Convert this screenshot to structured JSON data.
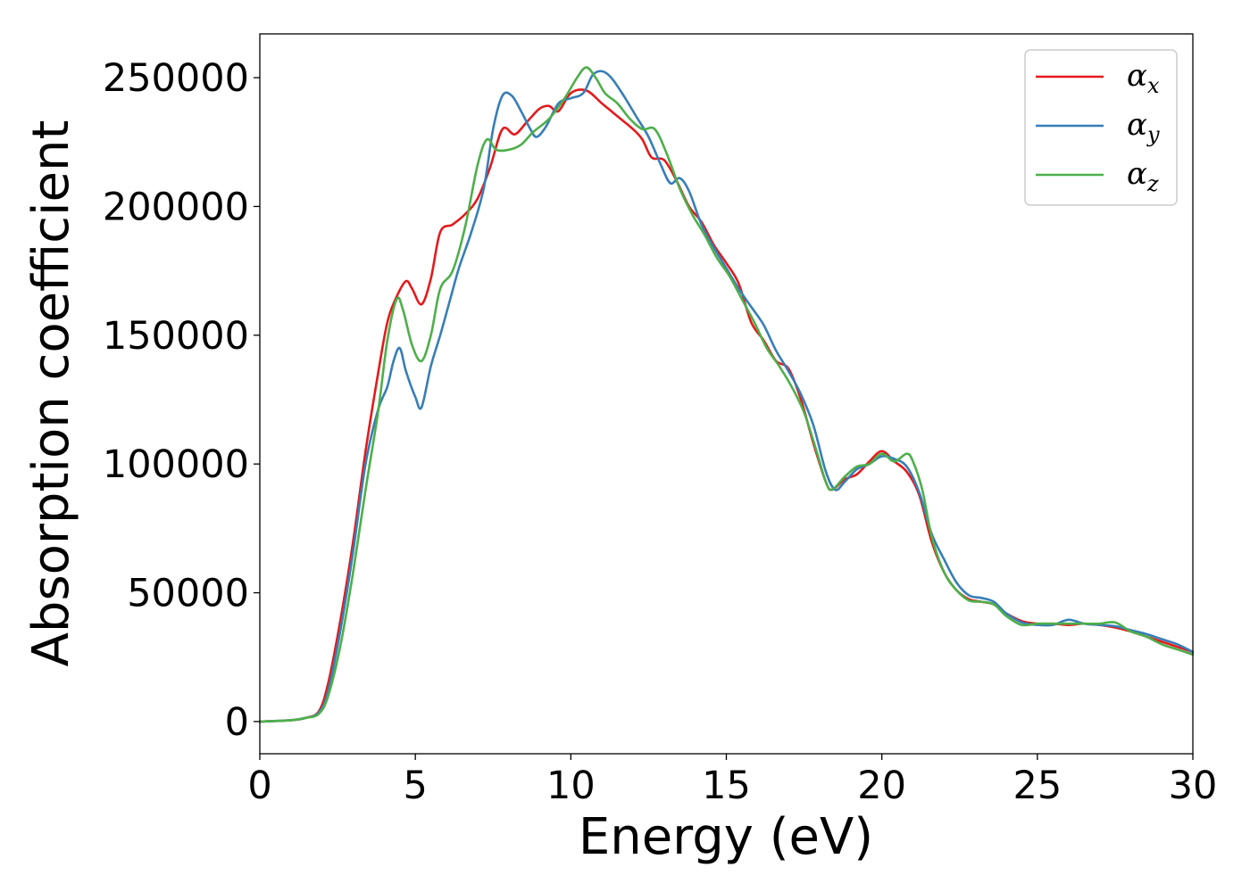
{
  "chart_data": {
    "type": "line",
    "title": "",
    "xlabel": "Energy (eV)",
    "ylabel": "Absorption coefficient",
    "xlim": [
      0,
      30
    ],
    "ylim": [
      -12500,
      267000
    ],
    "xticks": [
      0,
      5,
      10,
      15,
      20,
      25,
      30
    ],
    "yticks": [
      0,
      50000,
      100000,
      150000,
      200000,
      250000
    ],
    "xtick_labels": [
      "0",
      "5",
      "10",
      "15",
      "20",
      "25",
      "30"
    ],
    "ytick_labels": [
      "0",
      "50000",
      "100000",
      "150000",
      "200000",
      "250000"
    ],
    "grid": false,
    "legend": {
      "position": "top-right"
    },
    "series": [
      {
        "name": "α_x",
        "label_base": "α",
        "label_sub": "x",
        "color": "#e41a1c",
        "points": [
          [
            0,
            0
          ],
          [
            1,
            500
          ],
          [
            1.5,
            1500
          ],
          [
            1.9,
            4000
          ],
          [
            2.2,
            15000
          ],
          [
            2.6,
            40000
          ],
          [
            3.0,
            70000
          ],
          [
            3.4,
            105000
          ],
          [
            3.8,
            135000
          ],
          [
            4.1,
            155000
          ],
          [
            4.4,
            165000
          ],
          [
            4.7,
            171000
          ],
          [
            4.9,
            168000
          ],
          [
            5.2,
            162000
          ],
          [
            5.5,
            172000
          ],
          [
            5.8,
            190000
          ],
          [
            6.2,
            193000
          ],
          [
            6.6,
            197000
          ],
          [
            7.0,
            203000
          ],
          [
            7.4,
            215000
          ],
          [
            7.8,
            230000
          ],
          [
            8.2,
            228000
          ],
          [
            8.6,
            233000
          ],
          [
            9.0,
            238000
          ],
          [
            9.3,
            239000
          ],
          [
            9.6,
            237000
          ],
          [
            10.0,
            244000
          ],
          [
            10.5,
            245000
          ],
          [
            11.0,
            240000
          ],
          [
            11.5,
            235000
          ],
          [
            12.0,
            230000
          ],
          [
            12.3,
            226000
          ],
          [
            12.6,
            219000
          ],
          [
            13.0,
            218000
          ],
          [
            13.4,
            210000
          ],
          [
            13.8,
            200000
          ],
          [
            14.2,
            194000
          ],
          [
            14.6,
            185000
          ],
          [
            15.0,
            178000
          ],
          [
            15.4,
            170000
          ],
          [
            15.8,
            155000
          ],
          [
            16.2,
            148000
          ],
          [
            16.6,
            140000
          ],
          [
            17.0,
            137000
          ],
          [
            17.4,
            125000
          ],
          [
            17.8,
            108000
          ],
          [
            18.2,
            93000
          ],
          [
            18.4,
            90000
          ],
          [
            18.8,
            94000
          ],
          [
            19.2,
            96000
          ],
          [
            19.6,
            101000
          ],
          [
            20.0,
            105000
          ],
          [
            20.4,
            101000
          ],
          [
            20.8,
            97000
          ],
          [
            21.2,
            88000
          ],
          [
            21.6,
            70000
          ],
          [
            22.0,
            58000
          ],
          [
            22.4,
            51000
          ],
          [
            22.8,
            47500
          ],
          [
            23.2,
            46500
          ],
          [
            23.6,
            45500
          ],
          [
            24.0,
            42000
          ],
          [
            24.5,
            39000
          ],
          [
            25.0,
            38000
          ],
          [
            25.5,
            38000
          ],
          [
            26.0,
            37500
          ],
          [
            26.5,
            38000
          ],
          [
            27.0,
            37500
          ],
          [
            27.5,
            36500
          ],
          [
            28.0,
            35000
          ],
          [
            28.5,
            33000
          ],
          [
            29.0,
            31000
          ],
          [
            29.5,
            29000
          ],
          [
            30.0,
            27000
          ]
        ]
      },
      {
        "name": "α_y",
        "label_base": "α",
        "label_sub": "y",
        "color": "#377eb8",
        "points": [
          [
            0,
            0
          ],
          [
            1,
            500
          ],
          [
            1.5,
            1500
          ],
          [
            1.9,
            3500
          ],
          [
            2.2,
            12000
          ],
          [
            2.6,
            36000
          ],
          [
            3.0,
            66000
          ],
          [
            3.4,
            100000
          ],
          [
            3.8,
            121000
          ],
          [
            4.1,
            130000
          ],
          [
            4.3,
            140000
          ],
          [
            4.5,
            145000
          ],
          [
            4.7,
            136000
          ],
          [
            5.0,
            126000
          ],
          [
            5.2,
            122000
          ],
          [
            5.5,
            138000
          ],
          [
            5.8,
            150000
          ],
          [
            6.1,
            163000
          ],
          [
            6.4,
            176000
          ],
          [
            6.8,
            190000
          ],
          [
            7.2,
            207000
          ],
          [
            7.5,
            230000
          ],
          [
            7.8,
            243000
          ],
          [
            8.1,
            243000
          ],
          [
            8.4,
            237000
          ],
          [
            8.7,
            230000
          ],
          [
            8.9,
            227000
          ],
          [
            9.2,
            231000
          ],
          [
            9.6,
            240000
          ],
          [
            10.0,
            242000
          ],
          [
            10.4,
            244000
          ],
          [
            10.7,
            251000
          ],
          [
            11.0,
            252500
          ],
          [
            11.3,
            250000
          ],
          [
            11.7,
            243000
          ],
          [
            12.1,
            235000
          ],
          [
            12.5,
            227000
          ],
          [
            12.9,
            216000
          ],
          [
            13.2,
            209000
          ],
          [
            13.5,
            211000
          ],
          [
            13.8,
            206000
          ],
          [
            14.2,
            193000
          ],
          [
            14.6,
            184000
          ],
          [
            15.0,
            176000
          ],
          [
            15.4,
            168000
          ],
          [
            15.8,
            161000
          ],
          [
            16.2,
            154000
          ],
          [
            16.6,
            144000
          ],
          [
            17.0,
            136000
          ],
          [
            17.4,
            127000
          ],
          [
            17.8,
            115000
          ],
          [
            18.2,
            97000
          ],
          [
            18.5,
            90000
          ],
          [
            18.8,
            93000
          ],
          [
            19.2,
            98000
          ],
          [
            19.6,
            100000
          ],
          [
            20.0,
            103000
          ],
          [
            20.4,
            102000
          ],
          [
            20.8,
            99000
          ],
          [
            21.2,
            89000
          ],
          [
            21.6,
            73000
          ],
          [
            22.0,
            63000
          ],
          [
            22.4,
            54000
          ],
          [
            22.8,
            49000
          ],
          [
            23.2,
            48000
          ],
          [
            23.6,
            46500
          ],
          [
            24.0,
            42000
          ],
          [
            24.5,
            38500
          ],
          [
            25.0,
            37500
          ],
          [
            25.5,
            37500
          ],
          [
            26.0,
            39500
          ],
          [
            26.5,
            38000
          ],
          [
            27.0,
            37500
          ],
          [
            27.5,
            37000
          ],
          [
            28.0,
            35500
          ],
          [
            28.5,
            34000
          ],
          [
            29.0,
            32000
          ],
          [
            29.5,
            30000
          ],
          [
            30.0,
            27000
          ]
        ]
      },
      {
        "name": "α_z",
        "label_base": "α",
        "label_sub": "z",
        "color": "#4daf4a",
        "points": [
          [
            0,
            0
          ],
          [
            1,
            500
          ],
          [
            1.5,
            1500
          ],
          [
            1.9,
            3000
          ],
          [
            2.2,
            10000
          ],
          [
            2.6,
            30000
          ],
          [
            3.0,
            58000
          ],
          [
            3.4,
            90000
          ],
          [
            3.8,
            120000
          ],
          [
            4.1,
            148000
          ],
          [
            4.4,
            164000
          ],
          [
            4.6,
            160000
          ],
          [
            4.9,
            146000
          ],
          [
            5.2,
            140000
          ],
          [
            5.5,
            150000
          ],
          [
            5.8,
            168000
          ],
          [
            6.2,
            175000
          ],
          [
            6.6,
            192000
          ],
          [
            7.0,
            216000
          ],
          [
            7.3,
            226000
          ],
          [
            7.6,
            222000
          ],
          [
            8.0,
            222000
          ],
          [
            8.4,
            224000
          ],
          [
            8.8,
            229000
          ],
          [
            9.3,
            234000
          ],
          [
            9.8,
            242000
          ],
          [
            10.2,
            250000
          ],
          [
            10.5,
            254000
          ],
          [
            10.8,
            250000
          ],
          [
            11.1,
            244000
          ],
          [
            11.5,
            240000
          ],
          [
            11.9,
            234000
          ],
          [
            12.3,
            230000
          ],
          [
            12.7,
            230000
          ],
          [
            13.1,
            220000
          ],
          [
            13.5,
            207000
          ],
          [
            13.9,
            197000
          ],
          [
            14.3,
            189000
          ],
          [
            14.7,
            180000
          ],
          [
            15.1,
            173000
          ],
          [
            15.5,
            164000
          ],
          [
            15.9,
            155000
          ],
          [
            16.3,
            145000
          ],
          [
            16.7,
            138000
          ],
          [
            17.1,
            130000
          ],
          [
            17.5,
            120000
          ],
          [
            17.9,
            105000
          ],
          [
            18.2,
            93000
          ],
          [
            18.4,
            90000
          ],
          [
            18.8,
            95000
          ],
          [
            19.2,
            99000
          ],
          [
            19.6,
            100000
          ],
          [
            20.0,
            104000
          ],
          [
            20.4,
            101000
          ],
          [
            20.8,
            104000
          ],
          [
            21.0,
            101000
          ],
          [
            21.3,
            90000
          ],
          [
            21.6,
            72000
          ],
          [
            22.0,
            58000
          ],
          [
            22.4,
            51000
          ],
          [
            22.8,
            47000
          ],
          [
            23.2,
            46500
          ],
          [
            23.6,
            45500
          ],
          [
            24.0,
            41000
          ],
          [
            24.5,
            37500
          ],
          [
            25.0,
            38000
          ],
          [
            25.5,
            38000
          ],
          [
            26.0,
            38000
          ],
          [
            26.5,
            38000
          ],
          [
            27.0,
            38000
          ],
          [
            27.5,
            38500
          ],
          [
            28.0,
            35000
          ],
          [
            28.5,
            33000
          ],
          [
            29.0,
            30000
          ],
          [
            29.5,
            28000
          ],
          [
            30.0,
            26000
          ]
        ]
      }
    ]
  }
}
